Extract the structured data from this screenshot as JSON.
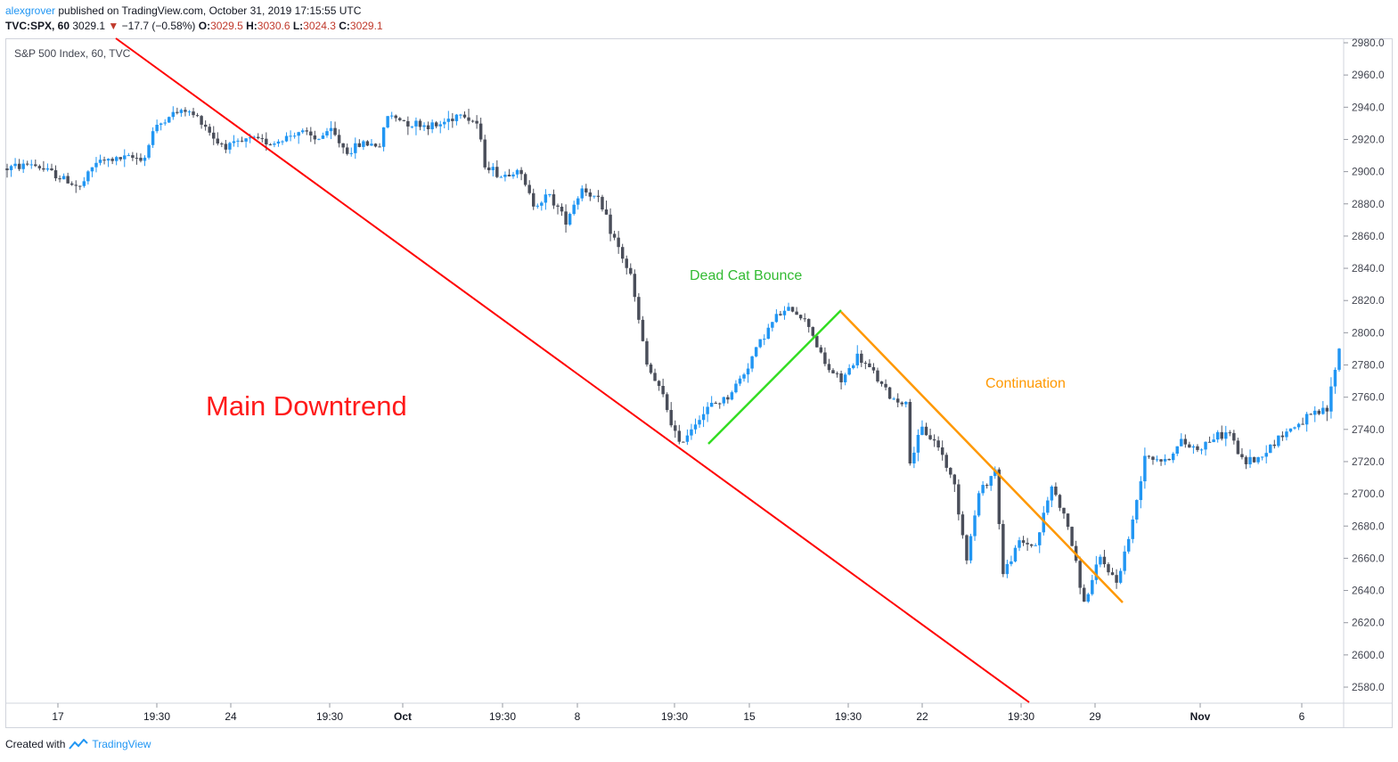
{
  "header": {
    "author": "alexgrover",
    "published_text": "published on TradingView.com, October 31, 2019 17:15:55 UTC",
    "symbol": "TVC:SPX, 60",
    "last": "3029.1",
    "change": "−17.7 (−0.58%)",
    "o_label": "O:",
    "o_value": "3029.5",
    "h_label": "H:",
    "h_value": "3030.6",
    "l_label": "L:",
    "l_value": "3024.3",
    "c_label": "C:",
    "c_value": "3029.1"
  },
  "legend": "S&P 500 Index, 60, TVC",
  "footer": {
    "created_with": "Created with",
    "brand": "TradingView"
  },
  "colors": {
    "up": "#2196f3",
    "down": "#4a4e5a",
    "main_trend": "#ff0000",
    "bounce": "#33dd22",
    "continuation": "#ff9800"
  },
  "chart_data": {
    "type": "candlestick",
    "ylim": [
      2565,
      2985
    ],
    "y_ticks": [
      "2980.0",
      "2960.0",
      "2940.0",
      "2920.0",
      "2900.0",
      "2880.0",
      "2860.0",
      "2840.0",
      "2820.0",
      "2800.0",
      "2780.0",
      "2760.0",
      "2740.0",
      "2720.0",
      "2700.0",
      "2680.0",
      "2660.0",
      "2640.0",
      "2620.0",
      "2600.0",
      "2580.0"
    ],
    "x_ticks": [
      "17",
      "19:30",
      "24",
      "19:30",
      "Oct",
      "19:30",
      "8",
      "19:30",
      "15",
      "19:30",
      "22",
      "19:30",
      "29",
      "Nov",
      "6"
    ],
    "annotations": {
      "main": "Main Downtrend",
      "bounce": "Dead Cat Bounce",
      "continuation": "Continuation"
    },
    "anchors": [
      {
        "x": 0,
        "y": 2902
      },
      {
        "x": 6,
        "y": 2905
      },
      {
        "x": 12,
        "y": 2898
      },
      {
        "x": 18,
        "y": 2890
      },
      {
        "x": 22,
        "y": 2906
      },
      {
        "x": 28,
        "y": 2908
      },
      {
        "x": 34,
        "y": 2909
      },
      {
        "x": 36,
        "y": 2925
      },
      {
        "x": 40,
        "y": 2935
      },
      {
        "x": 44,
        "y": 2938
      },
      {
        "x": 48,
        "y": 2932
      },
      {
        "x": 52,
        "y": 2918
      },
      {
        "x": 56,
        "y": 2916
      },
      {
        "x": 60,
        "y": 2920
      },
      {
        "x": 66,
        "y": 2918
      },
      {
        "x": 72,
        "y": 2925
      },
      {
        "x": 76,
        "y": 2920
      },
      {
        "x": 80,
        "y": 2925
      },
      {
        "x": 84,
        "y": 2912
      },
      {
        "x": 88,
        "y": 2918
      },
      {
        "x": 92,
        "y": 2916
      },
      {
        "x": 94,
        "y": 2935
      },
      {
        "x": 100,
        "y": 2930
      },
      {
        "x": 106,
        "y": 2928
      },
      {
        "x": 112,
        "y": 2937
      },
      {
        "x": 116,
        "y": 2930
      },
      {
        "x": 118,
        "y": 2905
      },
      {
        "x": 122,
        "y": 2897
      },
      {
        "x": 126,
        "y": 2902
      },
      {
        "x": 130,
        "y": 2880
      },
      {
        "x": 134,
        "y": 2885
      },
      {
        "x": 138,
        "y": 2870
      },
      {
        "x": 142,
        "y": 2890
      },
      {
        "x": 146,
        "y": 2882
      },
      {
        "x": 150,
        "y": 2858
      },
      {
        "x": 154,
        "y": 2835
      },
      {
        "x": 158,
        "y": 2780
      },
      {
        "x": 162,
        "y": 2760
      },
      {
        "x": 166,
        "y": 2730
      },
      {
        "x": 170,
        "y": 2745
      },
      {
        "x": 174,
        "y": 2755
      },
      {
        "x": 178,
        "y": 2760
      },
      {
        "x": 182,
        "y": 2775
      },
      {
        "x": 186,
        "y": 2795
      },
      {
        "x": 190,
        "y": 2810
      },
      {
        "x": 194,
        "y": 2815
      },
      {
        "x": 198,
        "y": 2805
      },
      {
        "x": 202,
        "y": 2780
      },
      {
        "x": 206,
        "y": 2770
      },
      {
        "x": 210,
        "y": 2785
      },
      {
        "x": 214,
        "y": 2775
      },
      {
        "x": 218,
        "y": 2760
      },
      {
        "x": 222,
        "y": 2756
      },
      {
        "x": 223,
        "y": 2720
      },
      {
        "x": 226,
        "y": 2740
      },
      {
        "x": 230,
        "y": 2730
      },
      {
        "x": 234,
        "y": 2705
      },
      {
        "x": 237,
        "y": 2660
      },
      {
        "x": 240,
        "y": 2700
      },
      {
        "x": 244,
        "y": 2715
      },
      {
        "x": 246,
        "y": 2650
      },
      {
        "x": 250,
        "y": 2670
      },
      {
        "x": 254,
        "y": 2668
      },
      {
        "x": 258,
        "y": 2705
      },
      {
        "x": 262,
        "y": 2680
      },
      {
        "x": 266,
        "y": 2632
      },
      {
        "x": 270,
        "y": 2660
      },
      {
        "x": 274,
        "y": 2645
      },
      {
        "x": 278,
        "y": 2682
      },
      {
        "x": 281,
        "y": 2725
      },
      {
        "x": 286,
        "y": 2720
      },
      {
        "x": 290,
        "y": 2732
      },
      {
        "x": 294,
        "y": 2728
      },
      {
        "x": 298,
        "y": 2735
      },
      {
        "x": 302,
        "y": 2738
      },
      {
        "x": 305,
        "y": 2720
      },
      {
        "x": 309,
        "y": 2722
      },
      {
        "x": 314,
        "y": 2735
      },
      {
        "x": 318,
        "y": 2742
      },
      {
        "x": 322,
        "y": 2748
      },
      {
        "x": 326,
        "y": 2752
      },
      {
        "x": 328,
        "y": 2778
      },
      {
        "x": 329,
        "y": 2790
      }
    ]
  }
}
